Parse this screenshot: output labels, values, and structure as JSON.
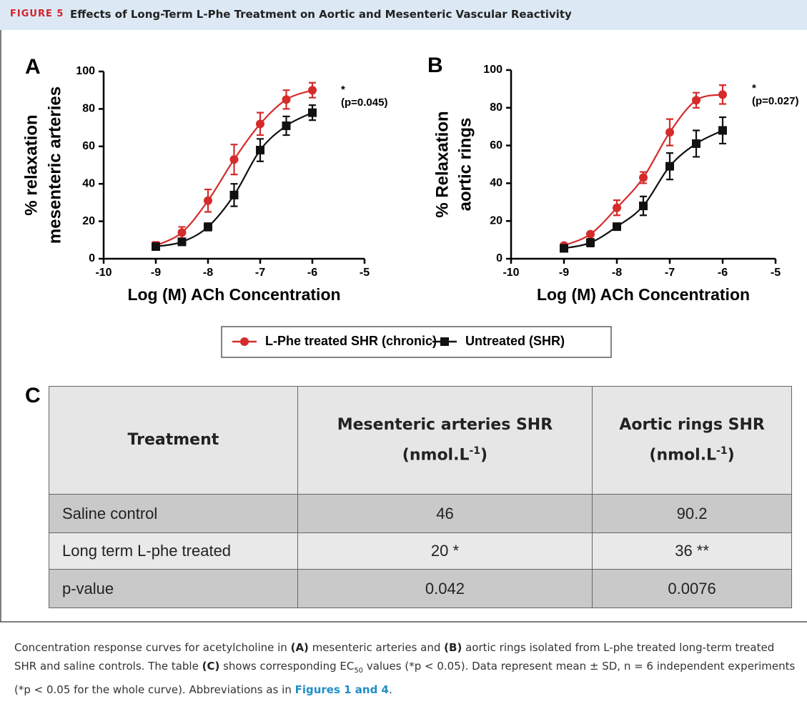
{
  "header": {
    "label": "FIGURE 5",
    "title": "Effects of Long-Term L-Phe Treatment on Aortic and Mesenteric Vascular Reactivity"
  },
  "chart_data": [
    {
      "type": "line",
      "panel": "A",
      "ylabel": [
        "% relaxation",
        "mesenteric arteries"
      ],
      "xlabel": "Log (M) ACh Concentration",
      "annotation": [
        "*",
        "(p=0.045)"
      ],
      "x": [
        -9,
        -8.5,
        -8,
        -7.5,
        -7,
        -6.5,
        -6
      ],
      "xlim": [
        -10,
        -5
      ],
      "xticks": [
        -10,
        -9,
        -8,
        -7,
        -6,
        -5
      ],
      "ylim": [
        0,
        100
      ],
      "yticks": [
        0,
        20,
        40,
        60,
        80,
        100
      ],
      "series": [
        {
          "name": "L-Phe treated SHR (chronic)",
          "color": "#d52b2b",
          "marker": "circle",
          "values": [
            7,
            14,
            31,
            53,
            72,
            85,
            90
          ],
          "errors": [
            2,
            3,
            6,
            8,
            6,
            5,
            4
          ]
        },
        {
          "name": "Untreated (SHR)",
          "color": "#111111",
          "marker": "square",
          "values": [
            6.5,
            9,
            17,
            34,
            58,
            71,
            78
          ],
          "errors": [
            1,
            1,
            2,
            6,
            6,
            5,
            4
          ]
        }
      ]
    },
    {
      "type": "line",
      "panel": "B",
      "ylabel": [
        "% Relaxation",
        "aortic rings"
      ],
      "xlabel": "Log (M) ACh Concentration",
      "annotation": [
        "*",
        "(p=0.027)"
      ],
      "x": [
        -9,
        -8.5,
        -8,
        -7.5,
        -7,
        -6.5,
        -6
      ],
      "xlim": [
        -10,
        -5
      ],
      "xticks": [
        -10,
        -9,
        -8,
        -7,
        -6,
        -5
      ],
      "ylim": [
        0,
        100
      ],
      "yticks": [
        0,
        20,
        40,
        60,
        80,
        100
      ],
      "series": [
        {
          "color": "#d52b2b",
          "marker": "circle",
          "values": [
            7,
            13,
            27,
            43,
            67,
            84,
            87
          ],
          "errors": [
            1,
            1,
            4,
            3,
            7,
            4,
            5
          ]
        },
        {
          "color": "#111111",
          "marker": "square",
          "values": [
            5.5,
            8.5,
            17,
            28,
            49,
            61,
            68
          ],
          "errors": [
            1,
            2,
            1,
            5,
            7,
            7,
            7
          ]
        }
      ]
    }
  ],
  "table": {
    "panel": "C",
    "header": [
      "Treatment",
      {
        "name": "Mesenteric arteries SHR",
        "unit": "(nmol.L",
        "sup": "-1",
        "close": ")"
      },
      {
        "name": "Aortic rings SHR",
        "unit": "(nmol.L",
        "sup": "-1",
        "close": ")"
      }
    ],
    "rows": [
      [
        "Saline control",
        "46",
        "90.2"
      ],
      [
        "Long term L-phe treated",
        "20 *",
        "36 **"
      ],
      [
        "p-value",
        "0.042",
        "0.0076"
      ]
    ]
  },
  "caption": [
    "Concentration response curves for acetylcholine in ",
    "(A)",
    " mesenteric arteries and ",
    "(B)",
    " aortic rings isolated from L-phe treated long-term treated SHR and saline controls. The table ",
    "(C)",
    " shows corresponding EC",
    "50",
    " values (*p < 0.05). Data represent mean ± SD, n = 6 independent experiments (*p < 0.05 for the whole curve). Abbreviations as in ",
    "Figures 1 and 4",
    "."
  ]
}
